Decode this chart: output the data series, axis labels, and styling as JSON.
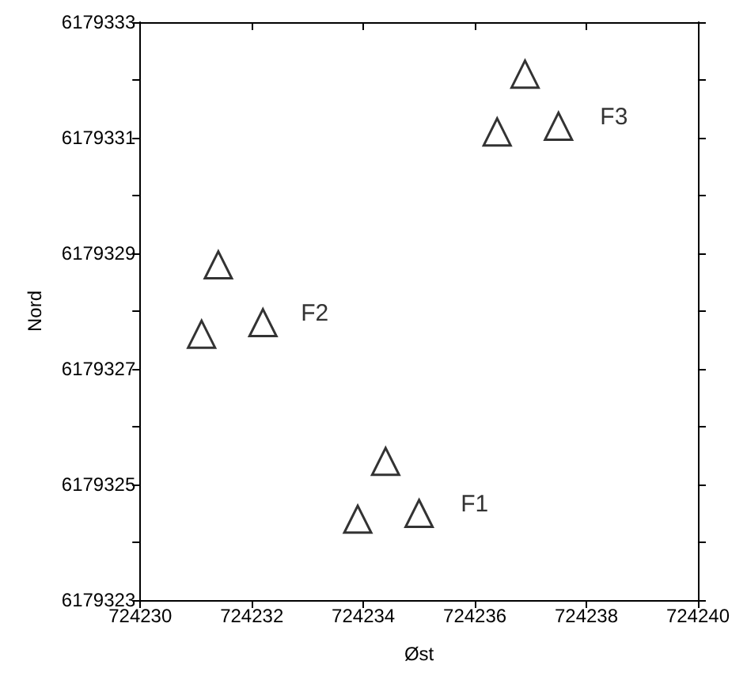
{
  "chart_data": {
    "type": "scatter",
    "xlabel": "Øst",
    "ylabel": "Nord",
    "x": [
      724236.9,
      724236.4,
      724237.5,
      724231.4,
      724231.1,
      724232.2,
      724234.4,
      724233.9,
      724235.0
    ],
    "values": [
      6179332.1,
      6179331.1,
      6179331.2,
      6179328.8,
      6179327.6,
      6179327.8,
      6179325.4,
      6179324.4,
      6179324.5
    ],
    "color": "#000000",
    "marker": "triangle",
    "grid": false,
    "xlim": [
      724230,
      724240
    ],
    "xticks": [
      724230,
      724232,
      724234,
      724236,
      724238,
      724240
    ],
    "ylim": [
      6179323,
      6179333
    ],
    "yticks": [
      6179323,
      {
        "value": 6179324,
        "label": null
      },
      6179325,
      {
        "value": 6179326,
        "label": null
      },
      6179327,
      {
        "value": 6179328,
        "label": null
      },
      6179329,
      {
        "value": 6179330,
        "label": null
      },
      6179331,
      {
        "value": 6179332,
        "label": null
      },
      6179333
    ],
    "annotations": [
      "F3",
      "F2",
      "F1"
    ]
  }
}
